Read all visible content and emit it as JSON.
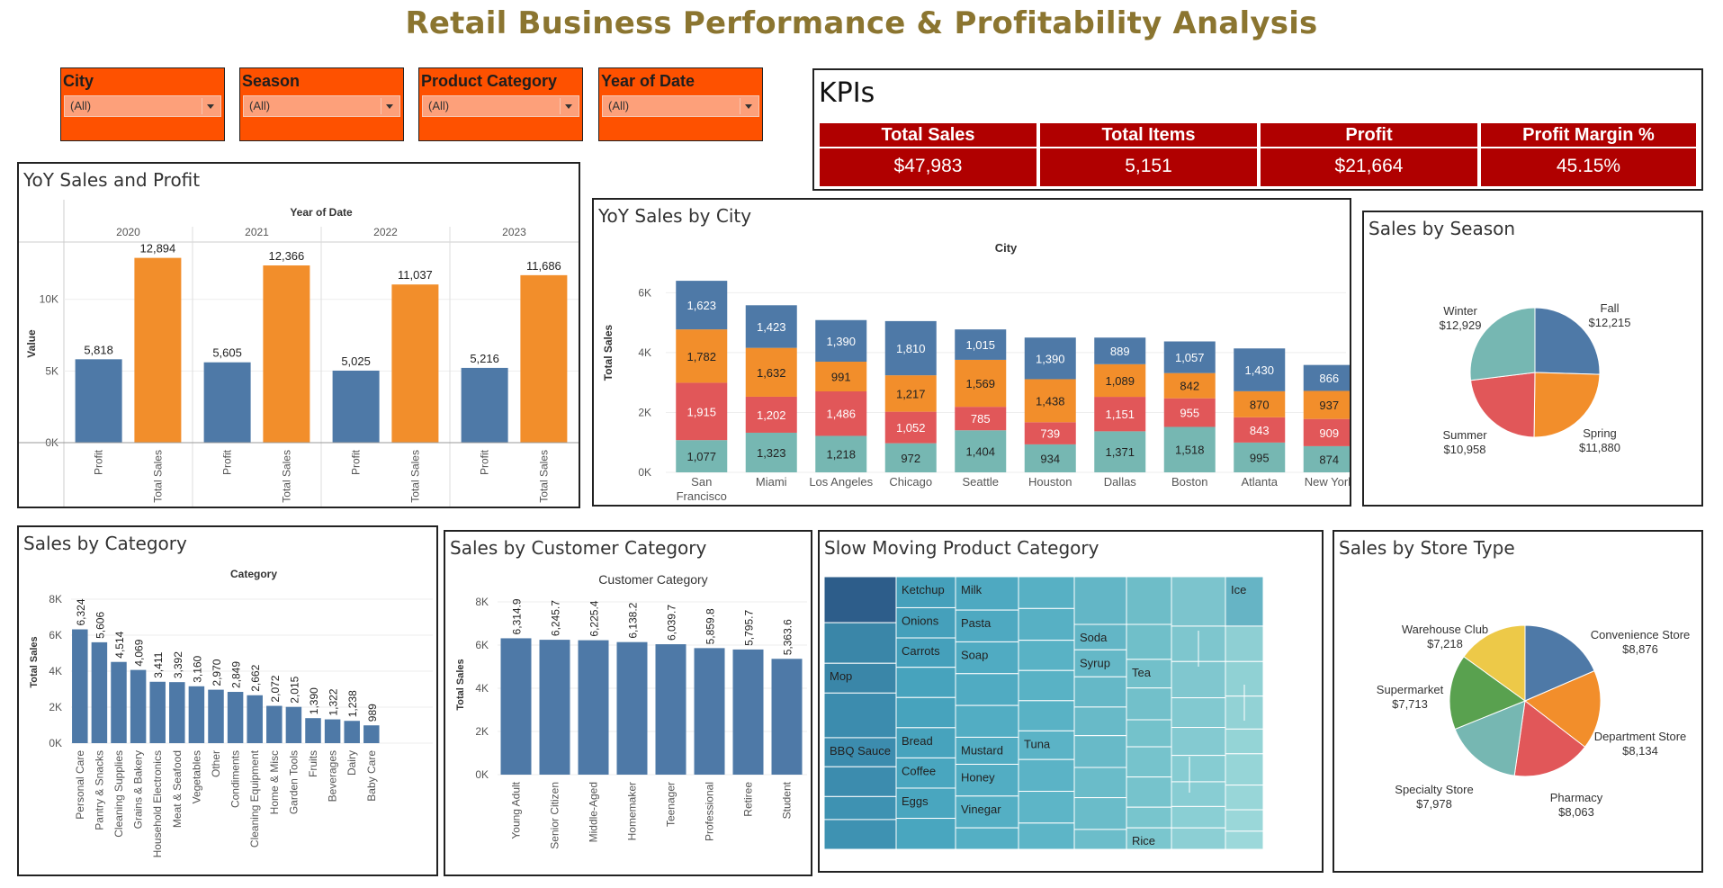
{
  "title": "Retail Business Performance & Profitability Analysis",
  "filters": [
    {
      "label": "City",
      "value": "(All)"
    },
    {
      "label": "Season",
      "value": "(All)"
    },
    {
      "label": "Product Category",
      "value": "(All)"
    },
    {
      "label": "Year of Date",
      "value": "(All)"
    }
  ],
  "kpis": {
    "title": "KPIs",
    "items": [
      {
        "label": "Total Sales",
        "value": "$47,983"
      },
      {
        "label": "Total Items",
        "value": "5,151"
      },
      {
        "label": "Profit",
        "value": "$21,664"
      },
      {
        "label": "Profit Margin %",
        "value": "45.15%"
      }
    ]
  },
  "panels": {
    "yoy": "YoY Sales and Profit",
    "city": "YoY Sales by City",
    "season": "Sales by Season",
    "category": "Sales by Category",
    "customer": "Sales by Customer Category",
    "slow": "Slow Moving Product Category",
    "store": "Sales by Store Type"
  },
  "colors": {
    "blue": "#4e79a7",
    "orange": "#f28e2b",
    "red": "#e15759",
    "teal": "#76b7b2",
    "green": "#59a14f",
    "yellow": "#edc948",
    "filter": "#fe5100",
    "kpi": "#b00000",
    "title": "#8b7530"
  },
  "chart_data": [
    {
      "id": "yoy",
      "type": "bar",
      "header": "Year of Date",
      "ylabel": "Value",
      "years": [
        "2020",
        "2021",
        "2022",
        "2023"
      ],
      "measures": [
        "Profit",
        "Total Sales"
      ],
      "series": [
        {
          "name": "Profit",
          "values": [
            5818,
            5605,
            5025,
            5216
          ]
        },
        {
          "name": "Total Sales",
          "values": [
            12894,
            12366,
            11037,
            11686
          ]
        }
      ],
      "ylim": [
        0,
        14000
      ],
      "yticks": [
        {
          "v": 0,
          "t": "0K"
        },
        {
          "v": 5000,
          "t": "5K"
        },
        {
          "v": 10000,
          "t": "10K"
        }
      ]
    },
    {
      "id": "city",
      "type": "bar",
      "stacked": true,
      "header": "City",
      "ylabel": "Total Sales",
      "categories": [
        "San Francisco",
        "Miami",
        "Los Angeles",
        "Chicago",
        "Seattle",
        "Houston",
        "Dallas",
        "Boston",
        "Atlanta",
        "New York"
      ],
      "series": [
        {
          "values": [
            1077,
            1323,
            1218,
            972,
            1404,
            934,
            1371,
            1518,
            995,
            874
          ]
        },
        {
          "values": [
            1915,
            1202,
            1486,
            1052,
            785,
            739,
            1151,
            955,
            843,
            909
          ]
        },
        {
          "values": [
            1782,
            1632,
            991,
            1217,
            1569,
            1438,
            1089,
            842,
            870,
            937
          ]
        },
        {
          "values": [
            1623,
            1423,
            1390,
            1810,
            1015,
            1390,
            889,
            1057,
            1430,
            866
          ]
        }
      ],
      "ylim": [
        0,
        6400
      ],
      "yticks": [
        {
          "v": 0,
          "t": "0K"
        },
        {
          "v": 2000,
          "t": "2K"
        },
        {
          "v": 4000,
          "t": "4K"
        },
        {
          "v": 6000,
          "t": "6K"
        }
      ]
    },
    {
      "id": "season",
      "type": "pie",
      "labels": [
        "Fall",
        "Spring",
        "Summer",
        "Winter"
      ],
      "values": [
        12215,
        11880,
        10958,
        12929
      ],
      "value_labels": [
        "$12,215",
        "$11,880",
        "$10,958",
        "$12,929"
      ]
    },
    {
      "id": "category",
      "type": "bar",
      "header": "Category",
      "ylabel": "Total Sales",
      "categories": [
        "Personal Care",
        "Pantry & Snacks",
        "Cleaning Supplies",
        "Grains & Bakery",
        "Household Electronics",
        "Meat & Seafood",
        "Vegetables",
        "Other",
        "Condiments",
        "Cleaning Equipment",
        "Home & Misc",
        "Garden Tools",
        "Fruits",
        "Beverages",
        "Dairy",
        "Baby Care"
      ],
      "values": [
        6324,
        5606,
        4514,
        4069,
        3411,
        3392,
        3160,
        2970,
        2849,
        2662,
        2072,
        2015,
        1390,
        1322,
        1238,
        989
      ],
      "value_labels": [
        "6,324",
        "5,606",
        "4,514",
        "4,069",
        "3,411",
        "3,392",
        "3,160",
        "2,970",
        "2,849",
        "2,662",
        "2,072",
        "2,015",
        "1,390",
        "1,322",
        "1,238",
        "989"
      ],
      "ylim": [
        0,
        8000
      ],
      "yticks": [
        {
          "v": 0,
          "t": "0K"
        },
        {
          "v": 2000,
          "t": "2K"
        },
        {
          "v": 4000,
          "t": "4K"
        },
        {
          "v": 6000,
          "t": "6K"
        },
        {
          "v": 8000,
          "t": "8K"
        }
      ]
    },
    {
      "id": "customer",
      "type": "bar",
      "header": "Customer Category",
      "ylabel": "Total Sales",
      "categories": [
        "Young Adult",
        "Senior Citizen",
        "Middle-Aged",
        "Homemaker",
        "Teenager",
        "Professional",
        "Retiree",
        "Student"
      ],
      "values": [
        6314.9,
        6245.7,
        6225.4,
        6138.2,
        6039.7,
        5859.8,
        5795.7,
        5363.6
      ],
      "value_labels": [
        "6,314.9",
        "6,245.7",
        "6,225.4",
        "6,138.2",
        "6,039.7",
        "5,859.8",
        "5,795.7",
        "5,363.6"
      ],
      "ylim": [
        0,
        8000
      ],
      "yticks": [
        {
          "v": 0,
          "t": "0K"
        },
        {
          "v": 2000,
          "t": "2K"
        },
        {
          "v": 4000,
          "t": "4K"
        },
        {
          "v": 6000,
          "t": "6K"
        },
        {
          "v": 8000,
          "t": "8K"
        }
      ]
    },
    {
      "id": "slow",
      "type": "heatmap",
      "labels": [
        "Mop",
        "BBQ Sauce",
        "Ketchup",
        "Onions",
        "Carrots",
        "Bread",
        "Coffee",
        "Eggs",
        "Milk",
        "Pasta",
        "Soap",
        "Mustard",
        "Honey",
        "Vinegar",
        "Tuna",
        "Soda",
        "Syrup",
        "Tea",
        "Rice",
        "Ice"
      ]
    },
    {
      "id": "store",
      "type": "pie",
      "labels": [
        "Convenience Store",
        "Department Store",
        "Pharmacy",
        "Specialty Store",
        "Supermarket",
        "Warehouse Club"
      ],
      "values": [
        8876,
        8134,
        8063,
        7978,
        7713,
        7218
      ],
      "value_labels": [
        "$8,876",
        "$8,134",
        "$8,063",
        "$7,978",
        "$7,713",
        "$7,218"
      ]
    }
  ]
}
